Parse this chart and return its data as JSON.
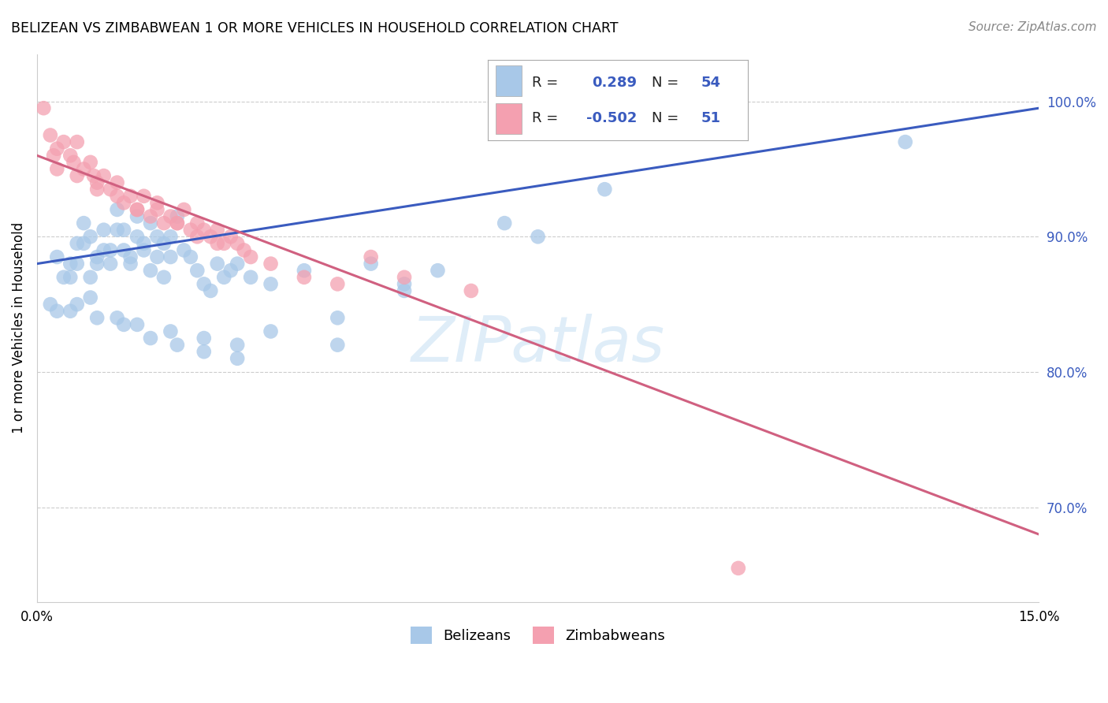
{
  "title": "BELIZEAN VS ZIMBABWEAN 1 OR MORE VEHICLES IN HOUSEHOLD CORRELATION CHART",
  "source": "Source: ZipAtlas.com",
  "ylabel": "1 or more Vehicles in Household",
  "xlim": [
    0.0,
    15.0
  ],
  "ylim": [
    63.0,
    103.5
  ],
  "yticks": [
    70.0,
    80.0,
    90.0,
    100.0
  ],
  "xticks": [
    0.0,
    3.0,
    6.0,
    9.0,
    12.0,
    15.0
  ],
  "xtick_labels": [
    "0.0%",
    "",
    "",
    "",
    "",
    "15.0%"
  ],
  "blue_color": "#a8c8e8",
  "pink_color": "#f4a0b0",
  "blue_line_color": "#3a5bbf",
  "pink_line_color": "#d06080",
  "watermark_text": "ZIPatlas",
  "blue_line_x0": 0.0,
  "blue_line_y0": 88.0,
  "blue_line_x1": 15.0,
  "blue_line_y1": 99.5,
  "pink_line_x0": 0.0,
  "pink_line_y0": 96.0,
  "pink_line_x1": 15.0,
  "pink_line_y1": 68.0,
  "blue_scatter_x": [
    0.3,
    0.4,
    0.5,
    0.6,
    0.7,
    0.8,
    0.9,
    1.0,
    1.1,
    1.2,
    1.3,
    1.4,
    1.5,
    1.6,
    1.7,
    1.8,
    1.9,
    2.0,
    2.1,
    2.2,
    2.3,
    2.4,
    2.5,
    2.6,
    2.7,
    2.8,
    2.9,
    3.0,
    3.2,
    3.5,
    4.0,
    4.5,
    5.0,
    5.5,
    6.0,
    7.0,
    8.5,
    13.0,
    0.5,
    0.6,
    0.7,
    0.8,
    0.9,
    1.0,
    1.1,
    1.2,
    1.3,
    1.4,
    1.5,
    1.6,
    1.7,
    1.8,
    1.9,
    2.0
  ],
  "blue_scatter_y": [
    88.5,
    87.0,
    88.0,
    89.5,
    91.0,
    90.0,
    88.0,
    90.5,
    89.0,
    92.0,
    90.5,
    88.5,
    91.5,
    89.5,
    91.0,
    90.0,
    89.5,
    90.0,
    91.5,
    89.0,
    88.5,
    87.5,
    86.5,
    86.0,
    88.0,
    87.0,
    87.5,
    88.0,
    87.0,
    86.5,
    87.5,
    84.0,
    88.0,
    86.5,
    87.5,
    91.0,
    93.5,
    97.0,
    87.0,
    88.0,
    89.5,
    87.0,
    88.5,
    89.0,
    88.0,
    90.5,
    89.0,
    88.0,
    90.0,
    89.0,
    87.5,
    88.5,
    87.0,
    88.5
  ],
  "blue_scatter_x2": [
    0.2,
    0.5,
    0.8,
    1.2,
    1.5,
    2.0,
    2.5,
    3.0,
    3.5,
    4.5,
    5.5,
    7.5,
    0.3,
    0.6,
    0.9,
    1.3,
    1.7,
    2.1,
    2.5,
    3.0
  ],
  "blue_scatter_y2": [
    85.0,
    84.5,
    85.5,
    84.0,
    83.5,
    83.0,
    82.5,
    82.0,
    83.0,
    82.0,
    86.0,
    90.0,
    84.5,
    85.0,
    84.0,
    83.5,
    82.5,
    82.0,
    81.5,
    81.0
  ],
  "pink_scatter_x": [
    0.1,
    0.2,
    0.3,
    0.4,
    0.5,
    0.6,
    0.7,
    0.8,
    0.9,
    1.0,
    1.1,
    1.2,
    1.3,
    1.4,
    1.5,
    1.6,
    1.7,
    1.8,
    1.9,
    2.0,
    2.1,
    2.2,
    2.3,
    2.4,
    2.5,
    2.6,
    2.7,
    2.8,
    2.9,
    3.0,
    3.2,
    3.5,
    4.0,
    4.5,
    5.0,
    5.5,
    6.5,
    0.3,
    0.6,
    0.9,
    1.2,
    1.5,
    1.8,
    2.1,
    2.4,
    2.7,
    3.1,
    0.25,
    0.55,
    0.85,
    10.5
  ],
  "pink_scatter_y": [
    99.5,
    97.5,
    96.5,
    97.0,
    96.0,
    97.0,
    95.0,
    95.5,
    94.0,
    94.5,
    93.5,
    94.0,
    92.5,
    93.0,
    92.0,
    93.0,
    91.5,
    92.5,
    91.0,
    91.5,
    91.0,
    92.0,
    90.5,
    91.0,
    90.5,
    90.0,
    90.5,
    89.5,
    90.0,
    89.5,
    88.5,
    88.0,
    87.0,
    86.5,
    88.5,
    87.0,
    86.0,
    95.0,
    94.5,
    93.5,
    93.0,
    92.0,
    92.0,
    91.0,
    90.0,
    89.5,
    89.0,
    96.0,
    95.5,
    94.5,
    65.5
  ]
}
